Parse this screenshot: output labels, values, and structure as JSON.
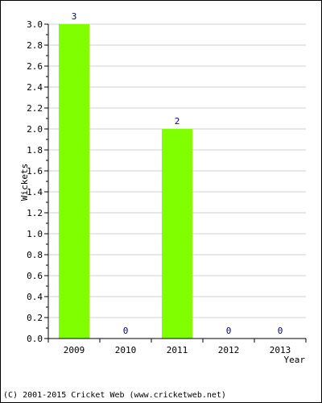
{
  "chart_data": {
    "type": "bar",
    "categories": [
      "2009",
      "2010",
      "2011",
      "2012",
      "2013"
    ],
    "values": [
      3,
      0,
      2,
      0,
      0
    ],
    "value_labels": [
      "3",
      "0",
      "2",
      "0",
      "0"
    ],
    "title": "",
    "xlabel": "Year",
    "ylabel": "Wickets",
    "ylim": [
      0,
      3.0
    ],
    "yticks": [
      "0.0",
      "0.2",
      "0.4",
      "0.6",
      "0.8",
      "1.0",
      "1.2",
      "1.4",
      "1.6",
      "1.8",
      "2.0",
      "2.2",
      "2.4",
      "2.6",
      "2.8",
      "3.0"
    ],
    "grid": true,
    "bar_color": "#80ff00",
    "value_label_color": "#000080"
  },
  "footer": {
    "copyright": "(C) 2001-2015 Cricket Web (www.cricketweb.net)"
  }
}
